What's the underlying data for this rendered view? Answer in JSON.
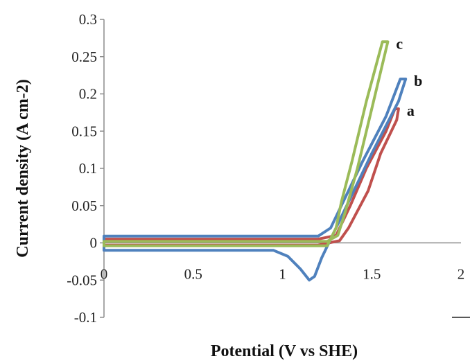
{
  "chart_data": {
    "type": "line",
    "xlabel": "Potential (V vs SHE)",
    "ylabel": "Current density (A cm-2)",
    "xlim": [
      0,
      2
    ],
    "ylim": [
      -0.1,
      0.3
    ],
    "x_ticks": [
      "0",
      "0.5",
      "1",
      "1.5",
      "2"
    ],
    "y_ticks": [
      "0.3",
      "0.25",
      "0.2",
      "0.15",
      "0.1",
      "0.05",
      "0",
      "-0.05",
      "-0.1"
    ],
    "grid": false,
    "series": [
      {
        "name": "a",
        "color": "#C0504D",
        "points": [
          [
            0,
            0.005
          ],
          [
            1.2,
            0.005
          ],
          [
            1.3,
            0.01
          ],
          [
            1.38,
            0.05
          ],
          [
            1.47,
            0.1
          ],
          [
            1.58,
            0.15
          ],
          [
            1.63,
            0.18
          ],
          [
            1.65,
            0.18
          ],
          [
            1.64,
            0.165
          ],
          [
            1.55,
            0.12
          ],
          [
            1.48,
            0.07
          ],
          [
            1.37,
            0.02
          ],
          [
            1.32,
            0.003
          ],
          [
            1.2,
            -0.003
          ],
          [
            1.0,
            -0.003
          ],
          [
            0,
            -0.003
          ]
        ]
      },
      {
        "name": "b",
        "color": "#4F81BD",
        "points": [
          [
            0,
            0.009
          ],
          [
            1.2,
            0.009
          ],
          [
            1.27,
            0.02
          ],
          [
            1.35,
            0.06
          ],
          [
            1.45,
            0.11
          ],
          [
            1.58,
            0.17
          ],
          [
            1.66,
            0.22
          ],
          [
            1.69,
            0.22
          ],
          [
            1.65,
            0.19
          ],
          [
            1.5,
            0.12
          ],
          [
            1.4,
            0.07
          ],
          [
            1.32,
            0.03
          ],
          [
            1.26,
            0.0
          ],
          [
            1.22,
            -0.02
          ],
          [
            1.18,
            -0.045
          ],
          [
            1.15,
            -0.05
          ],
          [
            1.1,
            -0.035
          ],
          [
            1.03,
            -0.018
          ],
          [
            0.95,
            -0.01
          ],
          [
            0,
            -0.01
          ]
        ]
      },
      {
        "name": "c",
        "color": "#9BBB59",
        "points": [
          [
            0,
            0.002
          ],
          [
            1.25,
            0.002
          ],
          [
            1.31,
            0.01
          ],
          [
            1.35,
            0.04
          ],
          [
            1.42,
            0.1
          ],
          [
            1.5,
            0.18
          ],
          [
            1.57,
            0.25
          ],
          [
            1.59,
            0.27
          ],
          [
            1.56,
            0.27
          ],
          [
            1.47,
            0.19
          ],
          [
            1.39,
            0.11
          ],
          [
            1.33,
            0.055
          ],
          [
            1.3,
            0.02
          ],
          [
            1.25,
            -0.004
          ],
          [
            1.1,
            -0.004
          ],
          [
            0,
            -0.004
          ]
        ]
      }
    ]
  },
  "colors": {
    "axis": "#8c8c8c"
  }
}
